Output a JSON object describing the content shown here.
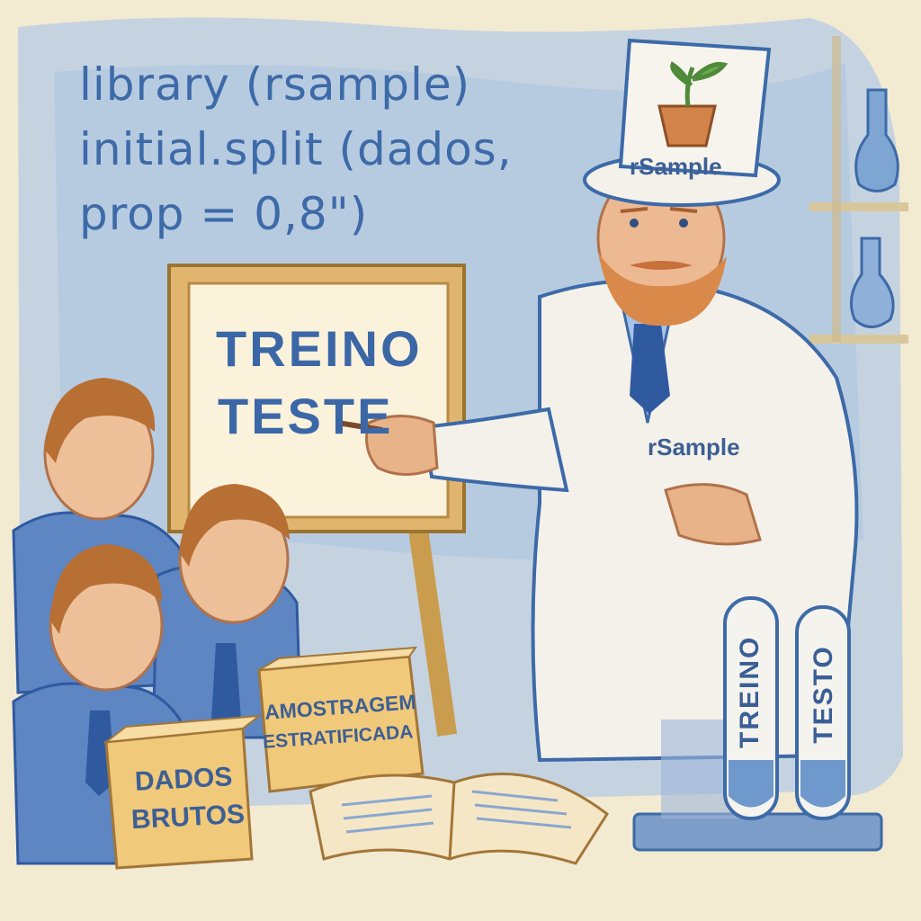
{
  "code": {
    "line1": "library (rsample)",
    "line2": "initial.split (dados,",
    "line3": "prop = 0,8\")"
  },
  "board": {
    "line1": "TREINO",
    "line2": "TESTE"
  },
  "hat_label": "rSample",
  "coat_label": "rSample",
  "boxes": {
    "raw_line1": "DADOS",
    "raw_line2": "BRUTOS",
    "strat_line1": "AMOSTRAGEM",
    "strat_line2": "ESTRATIFICADA"
  },
  "tubes": {
    "left": "TREINO",
    "right": "TESTO"
  },
  "colors": {
    "ink": "#3d6aa8",
    "paper": "#f3ead2",
    "wash": "#a9c3e3",
    "box": "#f1c97a"
  }
}
